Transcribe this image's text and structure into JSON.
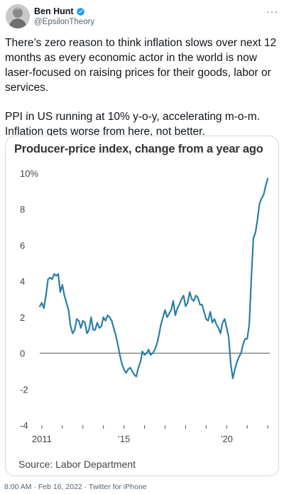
{
  "tweet": {
    "author_name": "Ben Hunt",
    "author_handle": "@EpsilonTheory",
    "more_glyph": "···",
    "paragraph_1": "There’s zero reason to think inflation slows over next 12 months as every economic actor in the world is now laser-focused on raising prices for their goods, labor or services.",
    "paragraph_2": "PPI in US running at 10% y-o-y, accelerating m-o-m. Inflation gets worse from here, not better.",
    "time": "8:00 AM",
    "date": "Feb 16, 2022",
    "client": "Twitter for iPhone",
    "separator": "·",
    "verified_color": "#1d9bf0"
  },
  "chart_data": {
    "type": "line",
    "title": "Producer-price index, change from a year ago",
    "source": "Source: Labor Department",
    "y_ticks": [
      "10%",
      "8",
      "6",
      "4",
      "2",
      "0",
      "-2",
      "-4"
    ],
    "y_tick_values": [
      10,
      8,
      6,
      4,
      2,
      0,
      -2,
      -4
    ],
    "ylim": [
      -4,
      10
    ],
    "x_tick_labels": [
      "2011",
      "’15",
      "’20"
    ],
    "x_tick_label_years": [
      2011,
      2015,
      2020
    ],
    "xlim": [
      2010.9,
      2022.1
    ],
    "line_color": "#2a7fa4",
    "grid": false,
    "series": [
      {
        "x": [
          2010.9,
          2011.0,
          2011.1,
          2011.2,
          2011.3,
          2011.4,
          2011.5,
          2011.6,
          2011.7,
          2011.8,
          2011.9,
          2012.0,
          2012.1,
          2012.2,
          2012.3,
          2012.4,
          2012.5,
          2012.6,
          2012.7,
          2012.8,
          2012.9,
          2013.0,
          2013.1,
          2013.2,
          2013.3,
          2013.4,
          2013.5,
          2013.6,
          2013.7,
          2013.8,
          2013.9,
          2014.0,
          2014.1,
          2014.2,
          2014.3,
          2014.4,
          2014.5,
          2014.6,
          2014.7,
          2014.8,
          2014.9,
          2015.0,
          2015.1,
          2015.2,
          2015.3,
          2015.4,
          2015.5,
          2015.6,
          2015.7,
          2015.8,
          2015.9,
          2016.0,
          2016.1,
          2016.2,
          2016.3,
          2016.4,
          2016.5,
          2016.6,
          2016.7,
          2016.8,
          2016.9,
          2017.0,
          2017.1,
          2017.2,
          2017.3,
          2017.4,
          2017.5,
          2017.6,
          2017.7,
          2017.8,
          2017.9,
          2018.0,
          2018.1,
          2018.2,
          2018.3,
          2018.4,
          2018.5,
          2018.6,
          2018.7,
          2018.8,
          2018.9,
          2019.0,
          2019.1,
          2019.2,
          2019.3,
          2019.4,
          2019.5,
          2019.6,
          2019.7,
          2019.8,
          2019.9,
          2020.0,
          2020.1,
          2020.2,
          2020.3,
          2020.4,
          2020.5,
          2020.6,
          2020.7,
          2020.8,
          2020.9,
          2021.0,
          2021.1,
          2021.2,
          2021.3,
          2021.4,
          2021.5,
          2021.6,
          2021.7,
          2021.8,
          2021.9,
          2022.0
        ],
        "values": [
          2.6,
          2.8,
          2.5,
          3.2,
          4.1,
          4.2,
          4.1,
          4.4,
          4.3,
          4.4,
          3.4,
          3.8,
          3.2,
          2.8,
          2.4,
          1.5,
          1.1,
          1.3,
          1.9,
          1.8,
          1.4,
          1.8,
          1.7,
          1.1,
          1.3,
          2.0,
          1.3,
          1.3,
          1.7,
          1.4,
          1.5,
          2.0,
          1.8,
          2.1,
          2.0,
          1.8,
          1.4,
          1.0,
          0.5,
          -0.1,
          -0.6,
          -0.9,
          -1.1,
          -0.9,
          -0.8,
          -1.0,
          -1.2,
          -1.3,
          -0.8,
          -0.5,
          0.1,
          -0.1,
          0.0,
          0.2,
          -0.1,
          0.0,
          0.2,
          0.5,
          1.0,
          1.6,
          2.0,
          2.4,
          2.0,
          2.2,
          2.4,
          2.9,
          2.1,
          2.5,
          2.7,
          3.0,
          3.2,
          2.6,
          2.8,
          3.4,
          3.0,
          2.9,
          3.2,
          3.1,
          2.7,
          2.7,
          2.3,
          1.9,
          1.8,
          2.3,
          1.7,
          1.9,
          1.6,
          1.4,
          1.1,
          1.7,
          1.9,
          1.4,
          0.9,
          -0.6,
          -1.4,
          -0.9,
          -0.5,
          -0.2,
          0.0,
          0.5,
          0.8,
          0.8,
          1.6,
          4.2,
          6.4,
          6.7,
          7.4,
          8.3,
          8.6,
          8.8,
          9.3,
          9.7
        ]
      }
    ]
  }
}
